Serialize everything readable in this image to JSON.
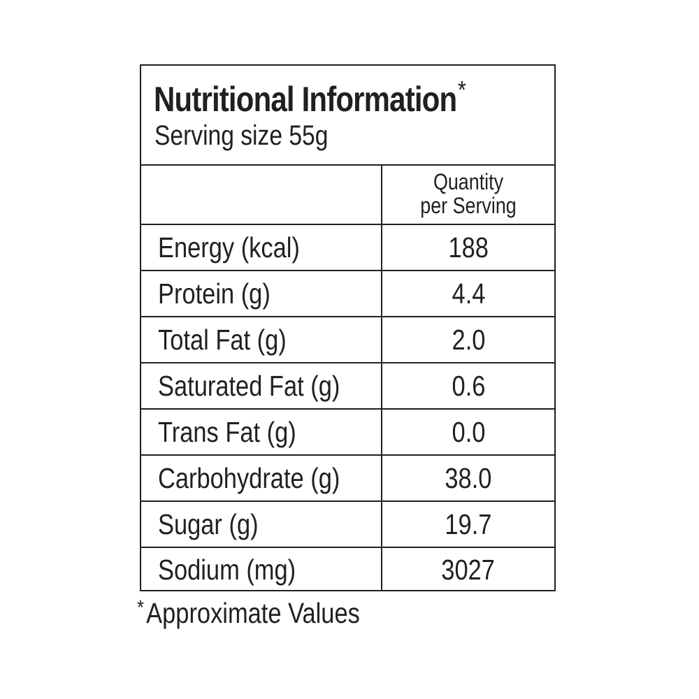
{
  "label": {
    "title": "Nutritional Information",
    "title_marker": "*",
    "serving_size": "Serving size 55g",
    "column_header": {
      "line1": "Quantity",
      "line2": "per Serving"
    },
    "rows": [
      {
        "nutrient": "Energy (kcal)",
        "value": "188"
      },
      {
        "nutrient": "Protein (g)",
        "value": "4.4"
      },
      {
        "nutrient": "Total Fat (g)",
        "value": "2.0"
      },
      {
        "nutrient": "Saturated Fat (g)",
        "value": "0.6"
      },
      {
        "nutrient": "Trans Fat (g)",
        "value": "0.0"
      },
      {
        "nutrient": "Carbohydrate (g)",
        "value": "38.0"
      },
      {
        "nutrient": "Sugar (g)",
        "value": "19.7"
      },
      {
        "nutrient": "Sodium (mg)",
        "value": "3027"
      }
    ],
    "footnote_marker": "*",
    "footnote": "Approximate Values"
  },
  "colors": {
    "ink": "#231f20",
    "background": "#ffffff"
  }
}
